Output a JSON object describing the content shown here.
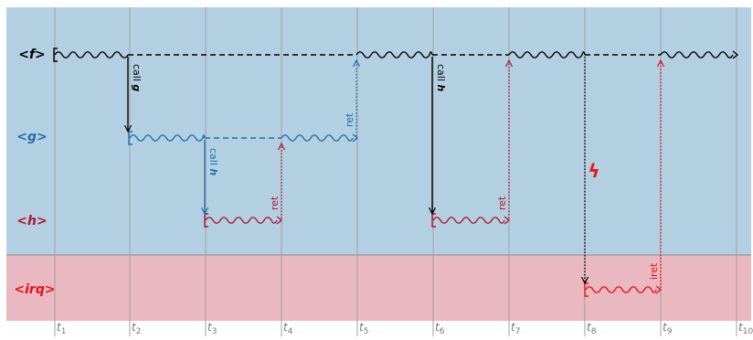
{
  "colors": {
    "main_bg": "#b3d0e2",
    "irq_bg": "#e9b8c0",
    "grid": "#a0a0a0",
    "f": "#000000",
    "g": "#1f6fb0",
    "h": "#b21830",
    "irq": "#ee1111"
  },
  "lanes": {
    "f": "<f>",
    "g": "<g>",
    "h": "<h>",
    "irq": "<irq>"
  },
  "ticks": [
    {
      "base": "t",
      "sub": "1"
    },
    {
      "base": "t",
      "sub": "2"
    },
    {
      "base": "t",
      "sub": "3"
    },
    {
      "base": "t",
      "sub": "4"
    },
    {
      "base": "t",
      "sub": "5"
    },
    {
      "base": "t",
      "sub": "6"
    },
    {
      "base": "t",
      "sub": "7"
    },
    {
      "base": "t",
      "sub": "8"
    },
    {
      "base": "t",
      "sub": "9"
    },
    {
      "base": "t",
      "sub": "10"
    }
  ],
  "labels": {
    "call_prefix": "call",
    "ret": "ret",
    "iret": "iret",
    "func_g": "g",
    "func_h": "h"
  },
  "interrupt_symbol": "ϟ"
}
